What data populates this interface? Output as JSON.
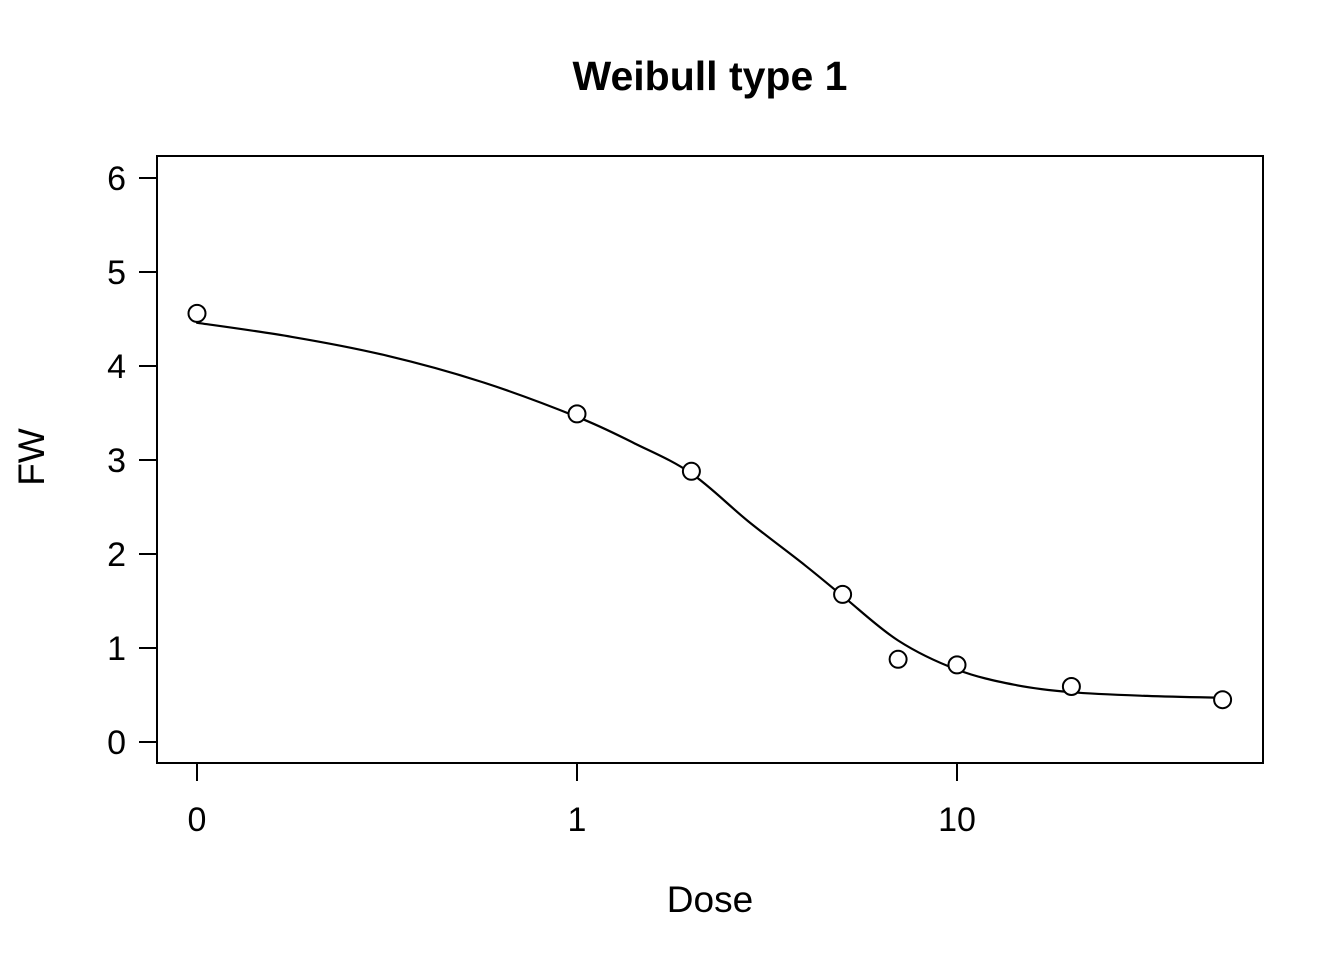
{
  "chart_data": {
    "type": "scatter",
    "title": "Weibull type 1",
    "xlabel": "Dose",
    "ylabel": "FW",
    "x_scale": "log10",
    "legend": "none",
    "grid": false,
    "x_ticks": [
      {
        "label": "0",
        "pos": -1
      },
      {
        "label": "1",
        "pos": 0
      },
      {
        "label": "10",
        "pos": 1
      }
    ],
    "y_ticks": [
      {
        "label": "0",
        "value": 0
      },
      {
        "label": "1",
        "value": 1
      },
      {
        "label": "2",
        "value": 2
      },
      {
        "label": "3",
        "value": 3
      },
      {
        "label": "4",
        "value": 4
      },
      {
        "label": "5",
        "value": 5
      },
      {
        "label": "6",
        "value": 6
      }
    ],
    "xlim_log": [
      -1.1,
      1.8
    ],
    "ylim": [
      -0.2,
      6.2
    ],
    "points": [
      {
        "dose": 0,
        "pos": -1.0,
        "fw": 4.56
      },
      {
        "dose": 1,
        "pos": 0.0,
        "fw": 3.49
      },
      {
        "dose": 2,
        "pos": 0.301,
        "fw": 2.88
      },
      {
        "dose": 5,
        "pos": 0.699,
        "fw": 1.57
      },
      {
        "dose": 7,
        "pos": 0.845,
        "fw": 0.88
      },
      {
        "dose": 10,
        "pos": 1.0,
        "fw": 0.82
      },
      {
        "dose": 20,
        "pos": 1.301,
        "fw": 0.59
      },
      {
        "dose": 50,
        "pos": 1.699,
        "fw": 0.45
      }
    ],
    "fit_curve": {
      "model": "Weibull type 1",
      "upper_asymptote": 4.46,
      "lower_asymptote": 0.47,
      "samples": [
        [
          -1.0,
          4.46
        ],
        [
          -0.75,
          4.31
        ],
        [
          -0.5,
          4.11
        ],
        [
          -0.25,
          3.83
        ],
        [
          0.0,
          3.46
        ],
        [
          0.15,
          3.18
        ],
        [
          0.3,
          2.86
        ],
        [
          0.45,
          2.35
        ],
        [
          0.6,
          1.88
        ],
        [
          0.7,
          1.55
        ],
        [
          0.845,
          1.08
        ],
        [
          1.0,
          0.77
        ],
        [
          1.15,
          0.61
        ],
        [
          1.3,
          0.53
        ],
        [
          1.5,
          0.49
        ],
        [
          1.7,
          0.47
        ]
      ]
    },
    "colors": {
      "foreground": "#000000",
      "background": "#ffffff",
      "point_fill": "#ffffff"
    }
  }
}
